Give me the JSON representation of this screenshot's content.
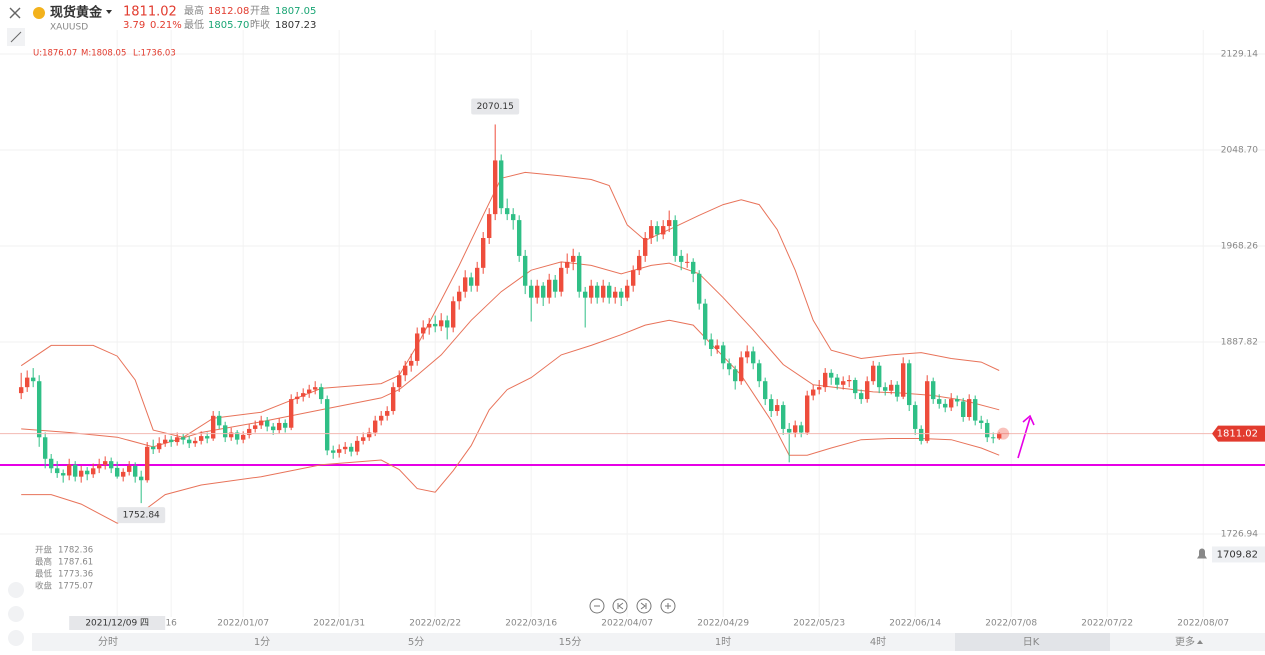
{
  "header": {
    "name": "现货黄金",
    "symbol": "XAUUSD",
    "price": "1811.02",
    "change": "3.79",
    "change_pct": "0.21%",
    "high_label": "最高",
    "high": "1812.08",
    "open_label": "开盘",
    "open": "1807.05",
    "low_label": "最低",
    "low": "1805.70",
    "prev_close_label": "昨收",
    "prev_close": "1807.23"
  },
  "chart_data": {
    "type": "candlestick",
    "up_color": "#ee4d3c",
    "down_color": "#2fbf86",
    "candles": [
      [
        1845,
        1862,
        1840,
        1850
      ],
      [
        1850,
        1864,
        1846,
        1858
      ],
      [
        1858,
        1866,
        1850,
        1855
      ],
      [
        1855,
        1860,
        1800,
        1808
      ],
      [
        1808,
        1812,
        1782,
        1790
      ],
      [
        1790,
        1794,
        1778,
        1782
      ],
      [
        1782,
        1788,
        1774,
        1778
      ],
      [
        1778,
        1781,
        1770,
        1776
      ],
      [
        1776,
        1790,
        1772,
        1785
      ],
      [
        1785,
        1788,
        1771,
        1775
      ],
      [
        1775,
        1784,
        1770,
        1780
      ],
      [
        1780,
        1783,
        1772,
        1777
      ],
      [
        1777,
        1786,
        1774,
        1782
      ],
      [
        1782,
        1790,
        1778,
        1785
      ],
      [
        1785,
        1792,
        1781,
        1788
      ],
      [
        1788,
        1791,
        1778,
        1782
      ],
      [
        1782.36,
        1787.61,
        1773.36,
        1775.07
      ],
      [
        1775,
        1782,
        1771,
        1779
      ],
      [
        1779,
        1788,
        1776,
        1784
      ],
      [
        1784,
        1787,
        1770,
        1775
      ],
      [
        1775,
        1780,
        1752.84,
        1772
      ],
      [
        1772,
        1804,
        1770,
        1800
      ],
      [
        1800,
        1806,
        1794,
        1798
      ],
      [
        1798,
        1808,
        1795,
        1803
      ],
      [
        1803,
        1810,
        1800,
        1806
      ],
      [
        1806,
        1809,
        1800,
        1804
      ],
      [
        1804,
        1812,
        1801,
        1808
      ],
      [
        1808,
        1811,
        1802,
        1806
      ],
      [
        1806,
        1809,
        1799,
        1803
      ],
      [
        1803,
        1808,
        1800,
        1805
      ],
      [
        1805,
        1813,
        1802,
        1809
      ],
      [
        1809,
        1812,
        1803,
        1807
      ],
      [
        1807,
        1830,
        1805,
        1826
      ],
      [
        1826,
        1830,
        1815,
        1818
      ],
      [
        1818,
        1821,
        1804,
        1808
      ],
      [
        1808,
        1816,
        1805,
        1812
      ],
      [
        1812,
        1814,
        1802,
        1806
      ],
      [
        1806,
        1813,
        1803,
        1810
      ],
      [
        1810,
        1819,
        1807,
        1815
      ],
      [
        1815,
        1822,
        1812,
        1818
      ],
      [
        1818,
        1826,
        1815,
        1822
      ],
      [
        1822,
        1825,
        1813,
        1817
      ],
      [
        1817,
        1820,
        1810,
        1814
      ],
      [
        1814,
        1824,
        1811,
        1820
      ],
      [
        1820,
        1823,
        1812,
        1816
      ],
      [
        1816,
        1844,
        1814,
        1840
      ],
      [
        1840,
        1846,
        1836,
        1842
      ],
      [
        1842,
        1849,
        1838,
        1845
      ],
      [
        1845,
        1852,
        1841,
        1848
      ],
      [
        1848,
        1855,
        1844,
        1850
      ],
      [
        1850,
        1853,
        1836,
        1840
      ],
      [
        1840,
        1843,
        1793,
        1797
      ],
      [
        1797,
        1801,
        1790,
        1795
      ],
      [
        1795,
        1802,
        1791,
        1798
      ],
      [
        1798,
        1804,
        1794,
        1800
      ],
      [
        1800,
        1803,
        1792,
        1796
      ],
      [
        1796,
        1809,
        1793,
        1805
      ],
      [
        1805,
        1812,
        1802,
        1808
      ],
      [
        1808,
        1816,
        1805,
        1812
      ],
      [
        1812,
        1826,
        1809,
        1822
      ],
      [
        1822,
        1830,
        1818,
        1826
      ],
      [
        1826,
        1834,
        1822,
        1830
      ],
      [
        1830,
        1854,
        1827,
        1850
      ],
      [
        1850,
        1864,
        1846,
        1860
      ],
      [
        1860,
        1872,
        1855,
        1868
      ],
      [
        1868,
        1878,
        1863,
        1872
      ],
      [
        1872,
        1900,
        1868,
        1895
      ],
      [
        1895,
        1906,
        1890,
        1900
      ],
      [
        1900,
        1908,
        1894,
        1903
      ],
      [
        1903,
        1910,
        1896,
        1901
      ],
      [
        1901,
        1912,
        1897,
        1906
      ],
      [
        1906,
        1910,
        1890,
        1900
      ],
      [
        1900,
        1926,
        1896,
        1922
      ],
      [
        1922,
        1935,
        1915,
        1930
      ],
      [
        1930,
        1948,
        1925,
        1942
      ],
      [
        1942,
        1946,
        1930,
        1935
      ],
      [
        1935,
        1955,
        1930,
        1950
      ],
      [
        1950,
        1980,
        1945,
        1975
      ],
      [
        1975,
        2000,
        1970,
        1995
      ],
      [
        1995,
        2070.15,
        1990,
        2040
      ],
      [
        2040,
        2045,
        1995,
        2000
      ],
      [
        2000,
        2008,
        1990,
        1995
      ],
      [
        1995,
        2000,
        1982,
        1990
      ],
      [
        1990,
        1994,
        1955,
        1960
      ],
      [
        1960,
        1965,
        1928,
        1935
      ],
      [
        1935,
        1940,
        1905,
        1925
      ],
      [
        1925,
        1940,
        1920,
        1935
      ],
      [
        1935,
        1938,
        1918,
        1925
      ],
      [
        1925,
        1945,
        1920,
        1940
      ],
      [
        1940,
        1944,
        1925,
        1930
      ],
      [
        1930,
        1955,
        1926,
        1950
      ],
      [
        1950,
        1962,
        1945,
        1955
      ],
      [
        1955,
        1966,
        1948,
        1960
      ],
      [
        1960,
        1963,
        1925,
        1930
      ],
      [
        1930,
        1934,
        1900,
        1925
      ],
      [
        1925,
        1940,
        1920,
        1935
      ],
      [
        1935,
        1938,
        1920,
        1925
      ],
      [
        1925,
        1940,
        1921,
        1935
      ],
      [
        1935,
        1938,
        1920,
        1925
      ],
      [
        1925,
        1934,
        1920,
        1930
      ],
      [
        1930,
        1933,
        1918,
        1925
      ],
      [
        1925,
        1940,
        1922,
        1935
      ],
      [
        1935,
        1952,
        1930,
        1948
      ],
      [
        1948,
        1965,
        1944,
        1960
      ],
      [
        1960,
        1980,
        1955,
        1975
      ],
      [
        1975,
        1990,
        1970,
        1985
      ],
      [
        1985,
        1989,
        1972,
        1978
      ],
      [
        1978,
        1990,
        1974,
        1985
      ],
      [
        1985,
        1998,
        1980,
        1990
      ],
      [
        1990,
        1994,
        1955,
        1960
      ],
      [
        1960,
        1965,
        1948,
        1955
      ],
      [
        1955,
        1962,
        1950,
        1955
      ],
      [
        1955,
        1958,
        1938,
        1945
      ],
      [
        1945,
        1948,
        1915,
        1920
      ],
      [
        1920,
        1924,
        1885,
        1890
      ],
      [
        1890,
        1895,
        1876,
        1882
      ],
      [
        1882,
        1890,
        1878,
        1885
      ],
      [
        1885,
        1888,
        1865,
        1870
      ],
      [
        1870,
        1874,
        1860,
        1865
      ],
      [
        1865,
        1868,
        1848,
        1855
      ],
      [
        1855,
        1880,
        1852,
        1875
      ],
      [
        1875,
        1885,
        1870,
        1880
      ],
      [
        1880,
        1884,
        1865,
        1870
      ],
      [
        1870,
        1873,
        1850,
        1855
      ],
      [
        1855,
        1858,
        1835,
        1840
      ],
      [
        1840,
        1844,
        1825,
        1830
      ],
      [
        1830,
        1840,
        1826,
        1835
      ],
      [
        1835,
        1838,
        1810,
        1815
      ],
      [
        1815,
        1820,
        1787,
        1812
      ],
      [
        1812,
        1822,
        1808,
        1818
      ],
      [
        1818,
        1821,
        1808,
        1812
      ],
      [
        1812,
        1847,
        1810,
        1843
      ],
      [
        1843,
        1852,
        1839,
        1848
      ],
      [
        1848,
        1856,
        1844,
        1850
      ],
      [
        1850,
        1866,
        1846,
        1862
      ],
      [
        1862,
        1865,
        1852,
        1858
      ],
      [
        1858,
        1861,
        1848,
        1852
      ],
      [
        1852,
        1859,
        1848,
        1855
      ],
      [
        1855,
        1860,
        1850,
        1856
      ],
      [
        1856,
        1858,
        1840,
        1845
      ],
      [
        1845,
        1848,
        1836,
        1840
      ],
      [
        1840,
        1859,
        1837,
        1855
      ],
      [
        1855,
        1872,
        1852,
        1868
      ],
      [
        1868,
        1871,
        1845,
        1850
      ],
      [
        1850,
        1854,
        1843,
        1847
      ],
      [
        1847,
        1856,
        1844,
        1852
      ],
      [
        1852,
        1855,
        1838,
        1842
      ],
      [
        1842,
        1875,
        1840,
        1870
      ],
      [
        1870,
        1873,
        1830,
        1835
      ],
      [
        1835,
        1838,
        1810,
        1815
      ],
      [
        1815,
        1818,
        1802,
        1805
      ],
      [
        1805,
        1860,
        1803,
        1855
      ],
      [
        1855,
        1858,
        1836,
        1840
      ],
      [
        1840,
        1844,
        1832,
        1836
      ],
      [
        1836,
        1840,
        1829,
        1833
      ],
      [
        1833,
        1845,
        1830,
        1840
      ],
      [
        1840,
        1843,
        1834,
        1838
      ],
      [
        1838,
        1841,
        1821,
        1825
      ],
      [
        1825,
        1844,
        1822,
        1840
      ],
      [
        1840,
        1843,
        1818,
        1822
      ],
      [
        1822,
        1826,
        1815,
        1820
      ],
      [
        1820,
        1823,
        1804,
        1808
      ],
      [
        1808,
        1812,
        1803,
        1807.23
      ],
      [
        1807.05,
        1812.08,
        1805.7,
        1811.02
      ]
    ],
    "xlim": [
      -3.53,
      207.3
    ],
    "ylim": [
      1657.4,
      2149.3
    ],
    "yticks": [
      2129.14,
      {
        "value": 2048.7,
        "label": "2048.70"
      },
      1968.26,
      1887.82,
      1726.94
    ],
    "xticks": [
      {
        "value": 16,
        "label": "2021/12/09 四"
      },
      {
        "value": 25,
        "label": "16"
      },
      {
        "value": 37,
        "label": "2022/01/07"
      },
      {
        "value": 53,
        "label": "2022/01/31"
      },
      {
        "value": 69,
        "label": "2022/02/22"
      },
      {
        "value": 85,
        "label": "2022/03/16"
      },
      {
        "value": 101,
        "label": "2022/04/07"
      },
      {
        "value": 117,
        "label": "2022/04/29"
      },
      {
        "value": 133,
        "label": "2022/05/23"
      },
      {
        "value": 149,
        "label": "2022/06/14"
      },
      {
        "value": 165,
        "label": "2022/07/08"
      },
      {
        "value": 181,
        "label": "2022/07/22"
      },
      {
        "value": 197,
        "label": "2022/08/07"
      }
    ],
    "grid": true,
    "bands": {
      "color": "#e8735a",
      "upper": {
        "x": [
          0,
          5,
          12,
          16,
          19,
          22,
          27,
          32,
          40,
          45,
          50,
          60,
          63,
          66,
          70,
          73,
          77,
          80,
          84,
          90,
          95,
          98,
          101,
          104,
          108,
          113,
          117,
          120,
          123,
          126,
          129,
          132,
          135,
          140,
          145,
          150,
          155,
          160,
          163
        ],
        "values": [
          1868,
          1885,
          1885,
          1876.07,
          1856,
          1814,
          1808,
          1824,
          1829,
          1839,
          1849,
          1853,
          1860,
          1885,
          1923,
          1952,
          1994,
          2025,
          2030,
          2027,
          2024,
          2019,
          1986,
          1973,
          1982,
          1994,
          2003,
          2007,
          2003,
          1982,
          1948,
          1906,
          1881,
          1874,
          1877,
          1879,
          1874,
          1871,
          1864
        ]
      },
      "middle": {
        "x": [
          0,
          8,
          16,
          22,
          30,
          40,
          50,
          60,
          63,
          66,
          70,
          75,
          80,
          85,
          90,
          95,
          100,
          105,
          108,
          113,
          117,
          122,
          127,
          132,
          137,
          142,
          147,
          152,
          157,
          163
        ],
        "values": [
          1815,
          1812,
          1808.05,
          1800,
          1812,
          1821,
          1831,
          1841,
          1848,
          1860,
          1877,
          1906,
          1930,
          1948,
          1955,
          1952,
          1945,
          1952,
          1954,
          1945,
          1925,
          1898,
          1869,
          1852,
          1849,
          1846,
          1845,
          1843,
          1839,
          1831
        ]
      },
      "lower": {
        "x": [
          0,
          5,
          10,
          16,
          20,
          24,
          30,
          40,
          50,
          60,
          63,
          66,
          69,
          72,
          75,
          78,
          81,
          85,
          90,
          95,
          100,
          104,
          108,
          112,
          116,
          120,
          125,
          128,
          131,
          135,
          140,
          145,
          150,
          155,
          160,
          163
        ],
        "values": [
          1760,
          1760,
          1752,
          1736.03,
          1745,
          1760,
          1768,
          1775,
          1785,
          1789,
          1781,
          1765,
          1762,
          1780,
          1801,
          1831,
          1848,
          1858,
          1877,
          1885,
          1894,
          1902,
          1906,
          1902,
          1881,
          1860,
          1822,
          1793,
          1793,
          1799,
          1806,
          1807,
          1807,
          1806,
          1799,
          1793
        ]
      }
    },
    "band_labels": [
      "U:1876.07",
      "M:1808.05",
      "L:1736.03"
    ],
    "info_labels": [
      "开盘",
      "最高",
      "最低",
      "收盘"
    ],
    "alert": 1709.82,
    "drawn_line": {
      "value": 1784.8,
      "color": "#e600e6"
    }
  },
  "toolbar": [
    "分时",
    "1分",
    "5分",
    "15分",
    "1时",
    "4时",
    "日K",
    "更多"
  ]
}
